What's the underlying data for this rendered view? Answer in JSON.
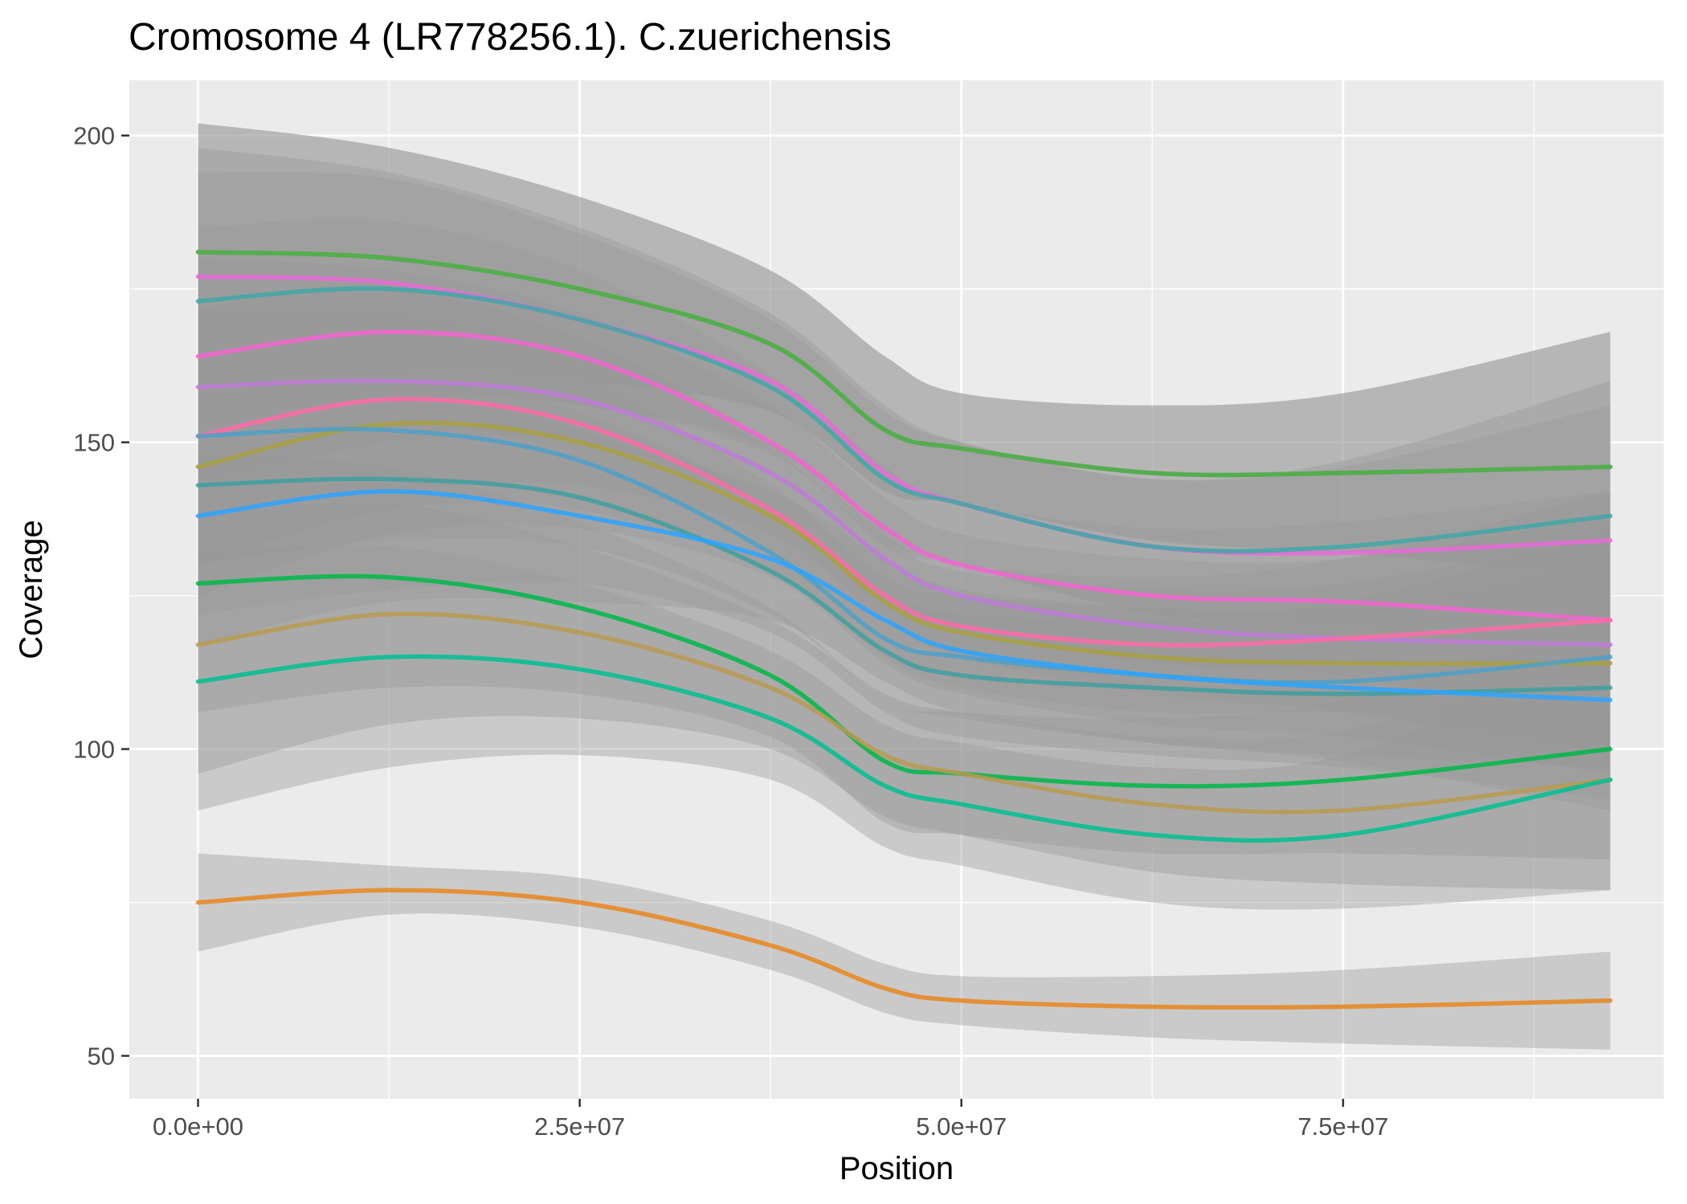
{
  "chart_data": {
    "type": "line",
    "title": "Cromosome 4 (LR778256.1). C.zuerichensis",
    "xlabel": "Position",
    "ylabel": "Coverage",
    "xlim": [
      -4500000,
      96000000
    ],
    "ylim": [
      43,
      209
    ],
    "x_ticks": [
      0,
      25000000,
      50000000,
      75000000
    ],
    "x_tick_labels": [
      "0.0e+00",
      "2.5e+07",
      "5.0e+07",
      "7.5e+07"
    ],
    "y_ticks": [
      50,
      100,
      150,
      200
    ],
    "y_tick_labels": [
      "50",
      "100",
      "150",
      "200"
    ],
    "grid": true,
    "legend": "none",
    "x": [
      0,
      12500000,
      25000000,
      37500000,
      45000000,
      50000000,
      62500000,
      75000000,
      92500000
    ],
    "series": [
      {
        "color": "#6a9e3f",
        "values": [
          181,
          180,
          175,
          166,
          152,
          149,
          145,
          145,
          146
        ],
        "band": [
          [
            160,
            202
          ],
          [
            162,
            198
          ],
          [
            160,
            190
          ],
          [
            155,
            178
          ],
          [
            142,
            164
          ],
          [
            140,
            158
          ],
          [
            134,
            156
          ],
          [
            132,
            158
          ],
          [
            128,
            168
          ]
        ]
      },
      {
        "color": "#4fb04f",
        "values": [
          181,
          180,
          175,
          166,
          152,
          149,
          145,
          145,
          146
        ],
        "band": [
          [
            160,
            202
          ],
          [
            162,
            198
          ],
          [
            160,
            190
          ],
          [
            155,
            178
          ],
          [
            142,
            164
          ],
          [
            140,
            158
          ],
          [
            134,
            156
          ],
          [
            132,
            158
          ],
          [
            128,
            168
          ]
        ]
      },
      {
        "color": "#e86ad8",
        "values": [
          177,
          176,
          170,
          160,
          145,
          140,
          133,
          132,
          134
        ],
        "band": [
          [
            156,
            198
          ],
          [
            158,
            194
          ],
          [
            156,
            185
          ],
          [
            149,
            171
          ],
          [
            134,
            156
          ],
          [
            130,
            150
          ],
          [
            122,
            144
          ],
          [
            120,
            146
          ],
          [
            115,
            156
          ]
        ]
      },
      {
        "color": "#3fa7a7",
        "values": [
          173,
          175,
          170,
          159,
          144,
          140,
          133,
          133,
          138
        ],
        "band": [
          [
            152,
            194
          ],
          [
            157,
            193
          ],
          [
            156,
            184
          ],
          [
            148,
            170
          ],
          [
            133,
            155
          ],
          [
            130,
            150
          ],
          [
            122,
            144
          ],
          [
            121,
            147
          ],
          [
            118,
            160
          ]
        ]
      },
      {
        "color": "#f564d2",
        "values": [
          164,
          168,
          164,
          150,
          136,
          130,
          125,
          124,
          121
        ],
        "band": [
          [
            143,
            185
          ],
          [
            150,
            186
          ],
          [
            150,
            178
          ],
          [
            140,
            161
          ],
          [
            126,
            146
          ],
          [
            120,
            140
          ],
          [
            114,
            136
          ],
          [
            112,
            137
          ],
          [
            103,
            142
          ]
        ]
      },
      {
        "color": "#c07ad8",
        "values": [
          159,
          160,
          157,
          145,
          131,
          125,
          120,
          118,
          117
        ],
        "band": [
          [
            138,
            180
          ],
          [
            142,
            178
          ],
          [
            143,
            171
          ],
          [
            135,
            156
          ],
          [
            121,
            141
          ],
          [
            115,
            135
          ],
          [
            109,
            131
          ],
          [
            106,
            131
          ],
          [
            99,
            138
          ]
        ]
      },
      {
        "color": "#ff6aa8",
        "values": [
          151,
          157,
          153,
          139,
          125,
          120,
          117,
          118,
          121
        ],
        "band": [
          [
            130,
            172
          ],
          [
            139,
            175
          ],
          [
            139,
            167
          ],
          [
            129,
            150
          ],
          [
            115,
            135
          ],
          [
            110,
            130
          ],
          [
            106,
            128
          ],
          [
            106,
            131
          ],
          [
            103,
            142
          ]
        ]
      },
      {
        "color": "#a8a040",
        "values": [
          146,
          153,
          150,
          138,
          124,
          119,
          115,
          114,
          114
        ],
        "band": [
          [
            125,
            167
          ],
          [
            135,
            171
          ],
          [
            136,
            164
          ],
          [
            128,
            149
          ],
          [
            114,
            134
          ],
          [
            109,
            129
          ],
          [
            104,
            126
          ],
          [
            102,
            127
          ],
          [
            96,
            135
          ]
        ]
      },
      {
        "color": "#4ea0c8",
        "values": [
          151,
          152,
          147,
          132,
          118,
          115,
          112,
          111,
          115
        ],
        "band": [
          [
            130,
            172
          ],
          [
            134,
            170
          ],
          [
            133,
            161
          ],
          [
            122,
            143
          ],
          [
            108,
            128
          ],
          [
            105,
            125
          ],
          [
            101,
            123
          ],
          [
            99,
            124
          ],
          [
            97,
            136
          ]
        ]
      },
      {
        "color": "#3fa0a0",
        "values": [
          143,
          144,
          141,
          129,
          116,
          112,
          110,
          109,
          110
        ],
        "band": [
          [
            122,
            164
          ],
          [
            126,
            162
          ],
          [
            127,
            155
          ],
          [
            119,
            140
          ],
          [
            106,
            126
          ],
          [
            102,
            122
          ],
          [
            99,
            121
          ],
          [
            97,
            122
          ],
          [
            92,
            131
          ]
        ]
      },
      {
        "color": "#2aa4ff",
        "values": [
          138,
          142,
          138,
          131,
          121,
          116,
          112,
          110,
          108
        ],
        "band": [
          [
            117,
            159
          ],
          [
            124,
            160
          ],
          [
            124,
            152
          ],
          [
            121,
            142
          ],
          [
            111,
            131
          ],
          [
            106,
            126
          ],
          [
            101,
            123
          ],
          [
            98,
            123
          ],
          [
            90,
            129
          ]
        ]
      },
      {
        "color": "#00b84a",
        "values": [
          127,
          128,
          123,
          112,
          98,
          96,
          94,
          95,
          100
        ],
        "band": [
          [
            106,
            148
          ],
          [
            110,
            146
          ],
          [
            109,
            137
          ],
          [
            102,
            123
          ],
          [
            88,
            108
          ],
          [
            86,
            106
          ],
          [
            83,
            105
          ],
          [
            83,
            108
          ],
          [
            82,
            121
          ]
        ]
      },
      {
        "color": "#b89a50",
        "values": [
          117,
          122,
          119,
          110,
          99,
          96,
          91,
          90,
          95
        ],
        "band": [
          [
            96,
            138
          ],
          [
            104,
            140
          ],
          [
            105,
            133
          ],
          [
            100,
            121
          ],
          [
            89,
            109
          ],
          [
            86,
            106
          ],
          [
            80,
            102
          ],
          [
            78,
            103
          ],
          [
            77,
            116
          ]
        ]
      },
      {
        "color": "#00c090",
        "values": [
          111,
          115,
          113,
          105,
          94,
          91,
          86,
          86,
          95
        ],
        "band": [
          [
            90,
            132
          ],
          [
            97,
            133
          ],
          [
            99,
            127
          ],
          [
            95,
            116
          ],
          [
            84,
            104
          ],
          [
            81,
            101
          ],
          [
            75,
            97
          ],
          [
            74,
            99
          ],
          [
            77,
            116
          ]
        ]
      },
      {
        "color": "#e8861c",
        "values": [
          75,
          77,
          75,
          68,
          61,
          59,
          58,
          58,
          59
        ],
        "band": [
          [
            67,
            83
          ],
          [
            73,
            81
          ],
          [
            71,
            79
          ],
          [
            64,
            72
          ],
          [
            57,
            65
          ],
          [
            55,
            63
          ],
          [
            53,
            63
          ],
          [
            52,
            64
          ],
          [
            51,
            67
          ]
        ]
      }
    ]
  }
}
